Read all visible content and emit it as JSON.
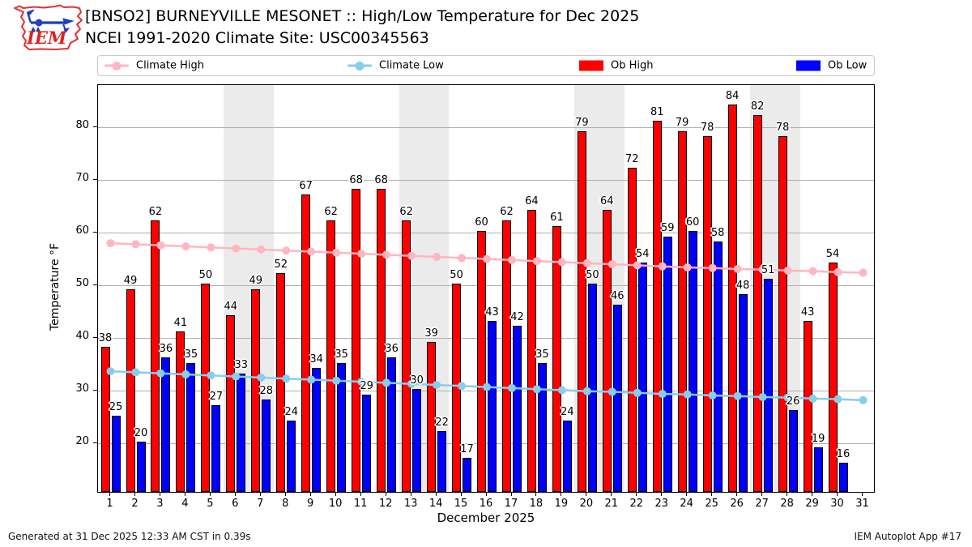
{
  "header": {
    "title_line1": "[BNSO2] BURNEYVILLE MESONET :: High/Low Temperature for Dec 2025",
    "title_line2": "NCEI 1991-2020 Climate Site: USC00345563",
    "logo_text": "IEM"
  },
  "legend": [
    {
      "label": "Climate High",
      "marker": "line",
      "color": "#ffb6c1"
    },
    {
      "label": "Climate Low",
      "marker": "line",
      "color": "#87ceeb"
    },
    {
      "label": "Ob High",
      "marker": "patch",
      "color": "#ff0000"
    },
    {
      "label": "Ob Low",
      "marker": "patch",
      "color": "#0000ff"
    }
  ],
  "chart_data": {
    "type": "bar",
    "x": [
      1,
      2,
      3,
      4,
      5,
      6,
      7,
      8,
      9,
      10,
      11,
      12,
      13,
      14,
      15,
      16,
      17,
      18,
      19,
      20,
      21,
      22,
      23,
      24,
      25,
      26,
      27,
      28,
      29,
      30,
      31
    ],
    "xlabel": "December 2025",
    "ylabel": "Temperature °F",
    "ylim": [
      10.5,
      88
    ],
    "yticks": [
      20,
      30,
      40,
      50,
      60,
      70,
      80
    ],
    "grid": true,
    "weekend_bands_days": [
      [
        5.5,
        7.5
      ],
      [
        12.5,
        14.5
      ],
      [
        19.5,
        21.5
      ],
      [
        26.5,
        28.5
      ]
    ],
    "series": [
      {
        "name": "Ob High",
        "type": "bar",
        "color": "#ff0000",
        "values": [
          38,
          49,
          62,
          41,
          50,
          44,
          49,
          52,
          67,
          62,
          68,
          68,
          62,
          39,
          50,
          60,
          62,
          64,
          61,
          79,
          64,
          72,
          81,
          79,
          78,
          84,
          82,
          78,
          43,
          54,
          null
        ]
      },
      {
        "name": "Ob Low",
        "type": "bar",
        "color": "#0000ff",
        "values": [
          25,
          20,
          36,
          35,
          27,
          33,
          28,
          24,
          34,
          35,
          29,
          36,
          30,
          22,
          17,
          43,
          42,
          35,
          24,
          50,
          46,
          54,
          59,
          60,
          58,
          48,
          51,
          26,
          19,
          16,
          null
        ]
      },
      {
        "name": "Climate High",
        "type": "line",
        "color": "#ffb6c1",
        "values": [
          58.0,
          57.8,
          57.6,
          57.4,
          57.2,
          57.0,
          56.8,
          56.6,
          56.4,
          56.2,
          56.0,
          55.8,
          55.6,
          55.4,
          55.2,
          55.0,
          54.8,
          54.6,
          54.4,
          54.2,
          54.0,
          53.8,
          53.6,
          53.4,
          53.3,
          53.1,
          53.0,
          52.8,
          52.7,
          52.5,
          52.4
        ]
      },
      {
        "name": "Climate Low",
        "type": "line",
        "color": "#87ceeb",
        "values": [
          33.7,
          33.5,
          33.3,
          33.1,
          32.9,
          32.7,
          32.5,
          32.3,
          32.1,
          31.9,
          31.7,
          31.5,
          31.3,
          31.1,
          30.9,
          30.7,
          30.5,
          30.3,
          30.1,
          29.9,
          29.8,
          29.6,
          29.4,
          29.3,
          29.1,
          29.0,
          28.8,
          28.7,
          28.5,
          28.4,
          28.2
        ]
      }
    ]
  },
  "footer": {
    "left": "Generated at 31 Dec 2025 12:33 AM CST in 0.39s",
    "right": "IEM Autoplot App #17"
  }
}
